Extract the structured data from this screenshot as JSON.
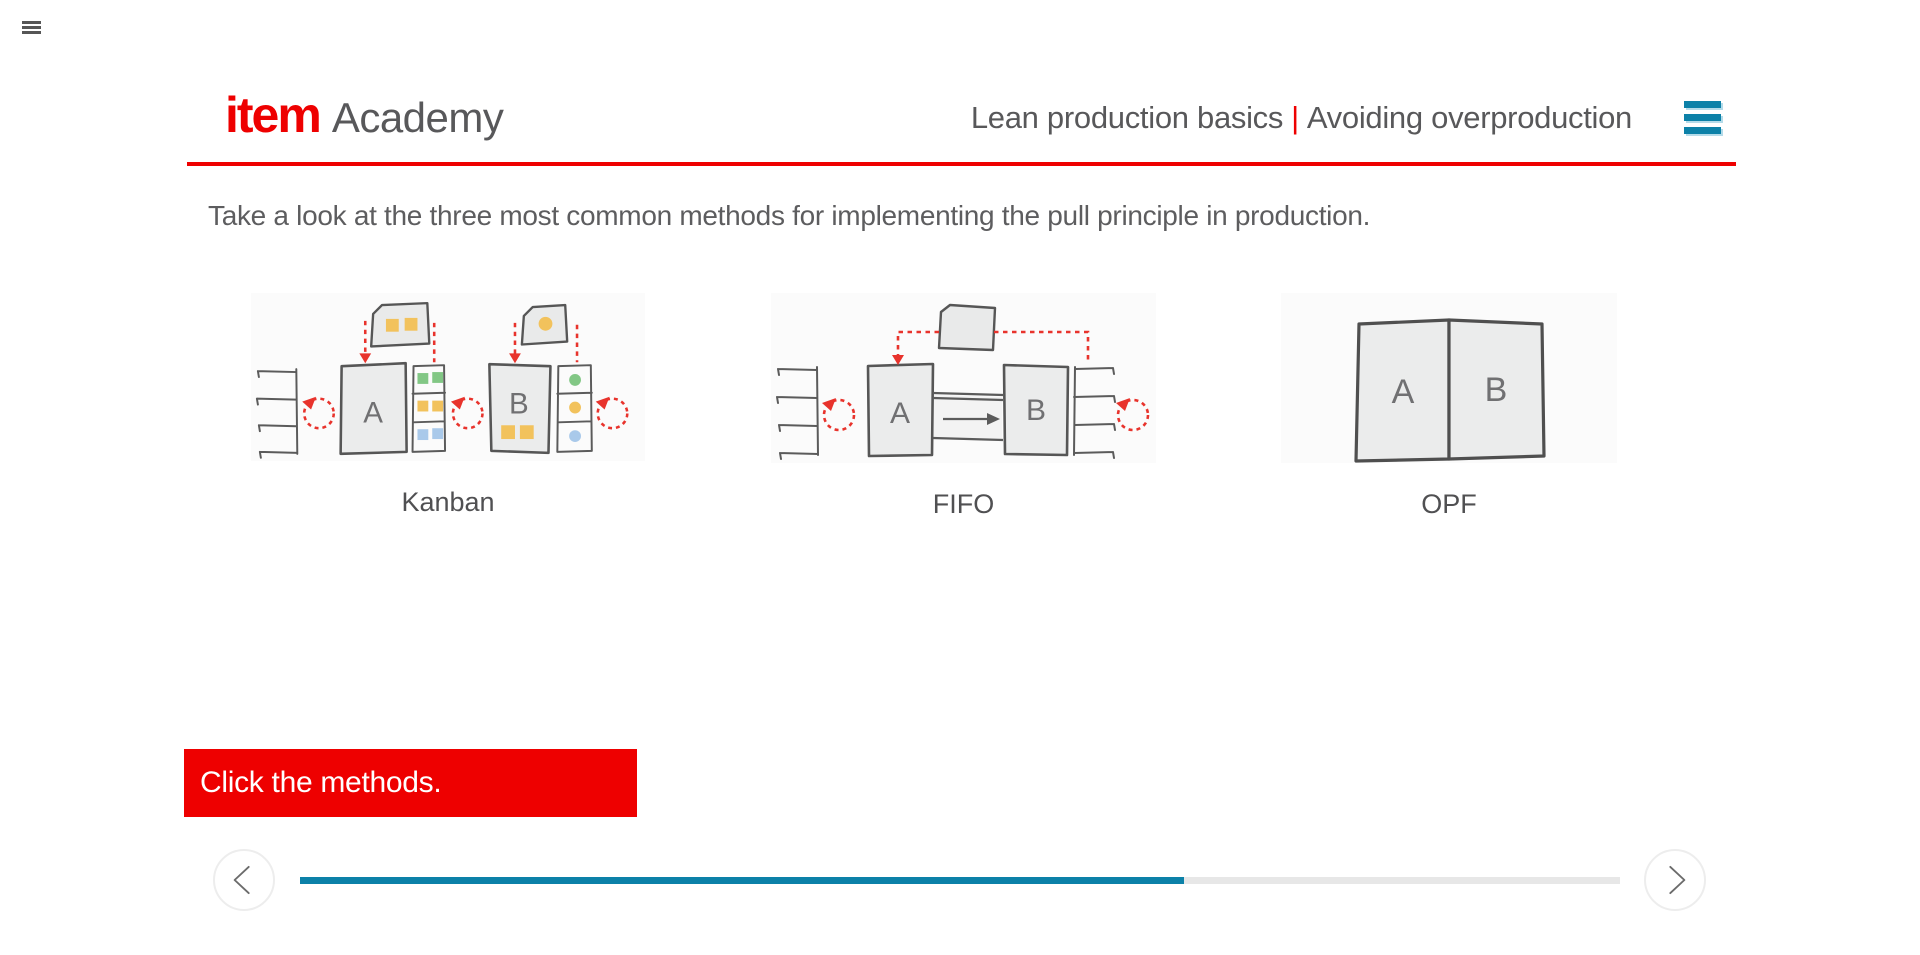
{
  "topbar": {
    "menu_icon": "hamburger"
  },
  "header": {
    "logo_brand": "item",
    "logo_suffix": "Academy",
    "course_title": "Lean production basics",
    "title_divider": "|",
    "lesson_title": "Avoiding overproduction",
    "menu_icon": "hamburger"
  },
  "content": {
    "intro_text": "Take a look at the three most common methods for implementing the pull principle in production.",
    "prompt_text": "Click the methods.",
    "methods": [
      {
        "key": "kanban",
        "label": "Kanban",
        "station_a": "A",
        "station_b": "B"
      },
      {
        "key": "fifo",
        "label": "FIFO",
        "station_a": "A",
        "station_b": "B"
      },
      {
        "key": "opf",
        "label": "OPF",
        "station_a": "A",
        "station_b": "B"
      }
    ]
  },
  "footer": {
    "prev_icon": "chevron-left",
    "next_icon": "chevron-right",
    "progress_percent": 67
  },
  "colors": {
    "brand_red": "#ee0000",
    "accent_teal": "#0c81a8",
    "text_gray": "#58585a",
    "diagram_stroke": "#5b5b5b",
    "diagram_fill": "#ebecec",
    "diagram_red": "#e8332c",
    "kanban_yellow": "#f2c25c",
    "kanban_green": "#82c785",
    "kanban_blue": "#a9c9ea"
  }
}
